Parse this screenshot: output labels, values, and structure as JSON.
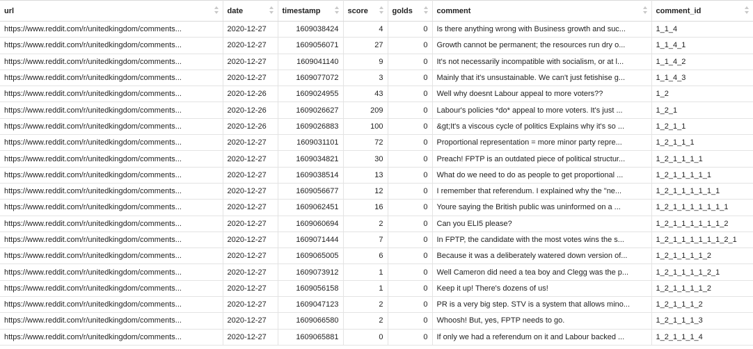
{
  "columns": {
    "url": "url",
    "date": "date",
    "timestamp": "timestamp",
    "score": "score",
    "golds": "golds",
    "comment": "comment",
    "comment_id": "comment_id"
  },
  "rows": [
    {
      "url": "https://www.reddit.com/r/unitedkingdom/comments...",
      "date": "2020-12-27",
      "timestamp": "1609038424",
      "score": "4",
      "golds": "0",
      "comment": "Is there anything wrong with Business growth and suc...",
      "comment_id": "1_1_4"
    },
    {
      "url": "https://www.reddit.com/r/unitedkingdom/comments...",
      "date": "2020-12-27",
      "timestamp": "1609056071",
      "score": "27",
      "golds": "0",
      "comment": "Growth cannot be permanent; the resources run dry o...",
      "comment_id": "1_1_4_1"
    },
    {
      "url": "https://www.reddit.com/r/unitedkingdom/comments...",
      "date": "2020-12-27",
      "timestamp": "1609041140",
      "score": "9",
      "golds": "0",
      "comment": "It's not necessarily incompatible with socialism, or at l...",
      "comment_id": "1_1_4_2"
    },
    {
      "url": "https://www.reddit.com/r/unitedkingdom/comments...",
      "date": "2020-12-27",
      "timestamp": "1609077072",
      "score": "3",
      "golds": "0",
      "comment": "Mainly that it's unsustainable. We can't just fetishise g...",
      "comment_id": "1_1_4_3"
    },
    {
      "url": "https://www.reddit.com/r/unitedkingdom/comments...",
      "date": "2020-12-26",
      "timestamp": "1609024955",
      "score": "43",
      "golds": "0",
      "comment": "Well why doesnt Labour appeal to more voters??",
      "comment_id": "1_2"
    },
    {
      "url": "https://www.reddit.com/r/unitedkingdom/comments...",
      "date": "2020-12-26",
      "timestamp": "1609026627",
      "score": "209",
      "golds": "0",
      "comment": "Labour's policies *do* appeal to more voters. It's just ...",
      "comment_id": "1_2_1"
    },
    {
      "url": "https://www.reddit.com/r/unitedkingdom/comments...",
      "date": "2020-12-26",
      "timestamp": "1609026883",
      "score": "100",
      "golds": "0",
      "comment": "&gt;It's a viscous cycle of politics Explains why it's so ...",
      "comment_id": "1_2_1_1"
    },
    {
      "url": "https://www.reddit.com/r/unitedkingdom/comments...",
      "date": "2020-12-27",
      "timestamp": "1609031101",
      "score": "72",
      "golds": "0",
      "comment": "Proportional representation = more minor party repre...",
      "comment_id": "1_2_1_1_1"
    },
    {
      "url": "https://www.reddit.com/r/unitedkingdom/comments...",
      "date": "2020-12-27",
      "timestamp": "1609034821",
      "score": "30",
      "golds": "0",
      "comment": "Preach! FPTP is an outdated piece of political structur...",
      "comment_id": "1_2_1_1_1_1"
    },
    {
      "url": "https://www.reddit.com/r/unitedkingdom/comments...",
      "date": "2020-12-27",
      "timestamp": "1609038514",
      "score": "13",
      "golds": "0",
      "comment": "What do we need to do as people to get proportional ...",
      "comment_id": "1_2_1_1_1_1_1"
    },
    {
      "url": "https://www.reddit.com/r/unitedkingdom/comments...",
      "date": "2020-12-27",
      "timestamp": "1609056677",
      "score": "12",
      "golds": "0",
      "comment": "I remember that referendum. I explained why the \"ne...",
      "comment_id": "1_2_1_1_1_1_1_1"
    },
    {
      "url": "https://www.reddit.com/r/unitedkingdom/comments...",
      "date": "2020-12-27",
      "timestamp": "1609062451",
      "score": "16",
      "golds": "0",
      "comment": "Youre saying the British public was uninformed on a ...",
      "comment_id": "1_2_1_1_1_1_1_1_1"
    },
    {
      "url": "https://www.reddit.com/r/unitedkingdom/comments...",
      "date": "2020-12-27",
      "timestamp": "1609060694",
      "score": "2",
      "golds": "0",
      "comment": "Can you ELI5 please?",
      "comment_id": "1_2_1_1_1_1_1_1_2"
    },
    {
      "url": "https://www.reddit.com/r/unitedkingdom/comments...",
      "date": "2020-12-27",
      "timestamp": "1609071444",
      "score": "7",
      "golds": "0",
      "comment": "In FPTP, the candidate with the most votes wins the s...",
      "comment_id": "1_2_1_1_1_1_1_1_2_1"
    },
    {
      "url": "https://www.reddit.com/r/unitedkingdom/comments...",
      "date": "2020-12-27",
      "timestamp": "1609065005",
      "score": "6",
      "golds": "0",
      "comment": "Because it was a deliberately watered down version of...",
      "comment_id": "1_2_1_1_1_1_2"
    },
    {
      "url": "https://www.reddit.com/r/unitedkingdom/comments...",
      "date": "2020-12-27",
      "timestamp": "1609073912",
      "score": "1",
      "golds": "0",
      "comment": "Well Cameron did need a tea boy and Clegg was the p...",
      "comment_id": "1_2_1_1_1_1_2_1"
    },
    {
      "url": "https://www.reddit.com/r/unitedkingdom/comments...",
      "date": "2020-12-27",
      "timestamp": "1609056158",
      "score": "1",
      "golds": "0",
      "comment": "Keep it up! There's dozens of us!",
      "comment_id": "1_2_1_1_1_1_2"
    },
    {
      "url": "https://www.reddit.com/r/unitedkingdom/comments...",
      "date": "2020-12-27",
      "timestamp": "1609047123",
      "score": "2",
      "golds": "0",
      "comment": "PR is a very big step. STV is a system that allows mino...",
      "comment_id": "1_2_1_1_1_2"
    },
    {
      "url": "https://www.reddit.com/r/unitedkingdom/comments...",
      "date": "2020-12-27",
      "timestamp": "1609066580",
      "score": "2",
      "golds": "0",
      "comment": "Whoosh! But, yes, FPTP needs to go.",
      "comment_id": "1_2_1_1_1_3"
    },
    {
      "url": "https://www.reddit.com/r/unitedkingdom/comments...",
      "date": "2020-12-27",
      "timestamp": "1609065881",
      "score": "0",
      "golds": "0",
      "comment": "If only we had a referendum on it and Labour backed ...",
      "comment_id": "1_2_1_1_1_4"
    }
  ]
}
